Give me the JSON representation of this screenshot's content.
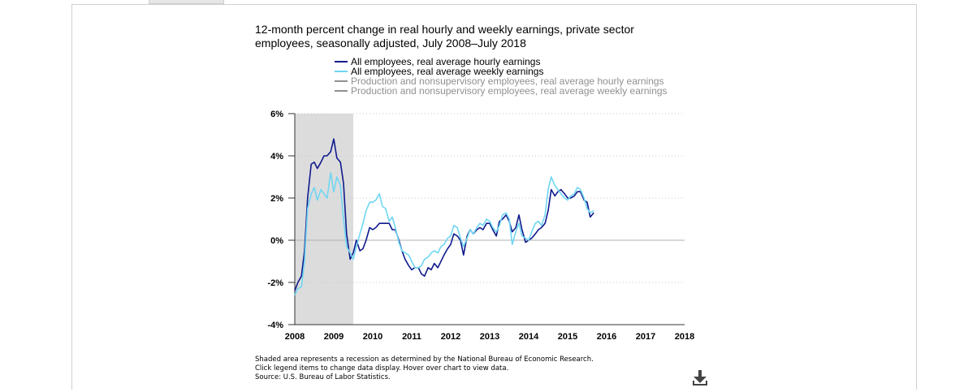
{
  "title": "12-month percent change in real hourly and weekly earnings, private sector employees, seasonally adjusted, July 2008–July 2018",
  "notes": [
    "Shaded area represents a recession as determined by the National Bureau of Economic Research.",
    "Click legend items to change data display. Hover over chart to view data.",
    "Source: U.S. Bureau of Labor Statistics."
  ],
  "icons": {
    "download": "download-icon"
  },
  "colors": {
    "hourly": "#0f1a8c",
    "weekly": "#6fd6f2",
    "inactive": "#909090",
    "recession": "#dcdcdc"
  },
  "chart_data": {
    "type": "line",
    "title": "12-month percent change in real hourly and weekly earnings, private sector employees, seasonally adjusted, July 2008–July 2018",
    "xlabel": "",
    "ylabel": "",
    "xlim": [
      2008,
      2018
    ],
    "ylim": [
      -4,
      6
    ],
    "x_ticks": [
      "2008",
      "2009",
      "2010",
      "2011",
      "2012",
      "2013",
      "2014",
      "2015",
      "2016",
      "2017",
      "2018"
    ],
    "y_ticks": [
      "6%",
      "4%",
      "2%",
      "0%",
      "-2%",
      "-4%"
    ],
    "y_tick_values": [
      6,
      4,
      2,
      0,
      -2,
      -4
    ],
    "grid": "horizontal-dotted",
    "legend_position": "top",
    "recession": {
      "start": 2008.0,
      "end": 2009.5
    },
    "series": [
      {
        "name": "All employees, real average hourly earnings",
        "color": "#0f1a8c",
        "active": true,
        "points": [
          [
            2008.0,
            -2.4
          ],
          [
            2008.08,
            -2.0
          ],
          [
            2008.17,
            -1.7
          ],
          [
            2008.25,
            -0.5
          ],
          [
            2008.33,
            2.0
          ],
          [
            2008.42,
            3.6
          ],
          [
            2008.5,
            3.7
          ],
          [
            2008.58,
            3.4
          ],
          [
            2008.67,
            3.7
          ],
          [
            2008.75,
            4.0
          ],
          [
            2008.83,
            4.0
          ],
          [
            2008.92,
            4.2
          ],
          [
            2009.0,
            4.8
          ],
          [
            2009.08,
            3.9
          ],
          [
            2009.17,
            3.7
          ],
          [
            2009.25,
            2.7
          ],
          [
            2009.33,
            0.3
          ],
          [
            2009.42,
            -0.9
          ],
          [
            2009.5,
            -0.6
          ],
          [
            2009.58,
            0.0
          ],
          [
            2009.67,
            -0.5
          ],
          [
            2009.75,
            -0.4
          ],
          [
            2009.83,
            0.0
          ],
          [
            2009.92,
            0.6
          ],
          [
            2010.0,
            0.5
          ],
          [
            2010.08,
            0.6
          ],
          [
            2010.17,
            0.8
          ],
          [
            2010.25,
            0.8
          ],
          [
            2010.33,
            0.8
          ],
          [
            2010.42,
            0.8
          ],
          [
            2010.5,
            0.5
          ],
          [
            2010.58,
            0.5
          ],
          [
            2010.67,
            0.0
          ],
          [
            2010.75,
            -0.5
          ],
          [
            2010.83,
            -0.9
          ],
          [
            2010.92,
            -1.2
          ],
          [
            2011.0,
            -1.4
          ],
          [
            2011.08,
            -1.3
          ],
          [
            2011.17,
            -1.3
          ],
          [
            2011.25,
            -1.6
          ],
          [
            2011.33,
            -1.7
          ],
          [
            2011.42,
            -1.3
          ],
          [
            2011.5,
            -1.4
          ],
          [
            2011.58,
            -1.1
          ],
          [
            2011.67,
            -1.3
          ],
          [
            2011.75,
            -1.0
          ],
          [
            2011.83,
            -0.7
          ],
          [
            2011.92,
            -0.4
          ],
          [
            2012.0,
            -0.2
          ],
          [
            2012.08,
            0.3
          ],
          [
            2012.17,
            0.2
          ],
          [
            2012.25,
            0.0
          ],
          [
            2012.33,
            -0.7
          ],
          [
            2012.42,
            0.2
          ],
          [
            2012.5,
            0.5
          ],
          [
            2012.58,
            0.3
          ],
          [
            2012.67,
            0.5
          ],
          [
            2012.75,
            0.6
          ],
          [
            2012.83,
            0.5
          ],
          [
            2012.92,
            0.8
          ],
          [
            2013.0,
            0.8
          ],
          [
            2013.08,
            0.5
          ],
          [
            2013.17,
            0.2
          ],
          [
            2013.25,
            0.9
          ],
          [
            2013.33,
            1.0
          ],
          [
            2013.42,
            1.2
          ],
          [
            2013.5,
            0.9
          ],
          [
            2013.58,
            0.4
          ],
          [
            2013.67,
            0.6
          ],
          [
            2013.75,
            1.2
          ],
          [
            2013.83,
            0.5
          ],
          [
            2013.92,
            -0.1
          ],
          [
            2014.0,
            0.0
          ],
          [
            2014.08,
            0.1
          ],
          [
            2014.17,
            0.3
          ],
          [
            2014.25,
            0.5
          ],
          [
            2014.33,
            0.6
          ],
          [
            2014.42,
            0.8
          ],
          [
            2014.5,
            1.4
          ],
          [
            2014.58,
            2.4
          ],
          [
            2014.67,
            2.1
          ],
          [
            2014.75,
            2.3
          ],
          [
            2014.83,
            2.4
          ],
          [
            2014.92,
            2.2
          ],
          [
            2015.0,
            2.0
          ],
          [
            2015.08,
            2.0
          ],
          [
            2015.17,
            2.1
          ],
          [
            2015.25,
            2.3
          ],
          [
            2015.33,
            2.3
          ],
          [
            2015.42,
            1.9
          ],
          [
            2015.5,
            1.8
          ],
          [
            2015.58,
            1.1
          ],
          [
            2015.67,
            1.3
          ]
        ]
      },
      {
        "name": "All employees, real average weekly earnings",
        "color": "#6fd6f2",
        "active": true,
        "points": [
          [
            2008.0,
            -2.6
          ],
          [
            2008.08,
            -2.3
          ],
          [
            2008.17,
            -2.2
          ],
          [
            2008.25,
            -1.0
          ],
          [
            2008.33,
            1.5
          ],
          [
            2008.42,
            2.2
          ],
          [
            2008.5,
            2.5
          ],
          [
            2008.58,
            1.9
          ],
          [
            2008.67,
            2.4
          ],
          [
            2008.75,
            2.2
          ],
          [
            2008.83,
            2.0
          ],
          [
            2008.92,
            3.2
          ],
          [
            2009.0,
            2.3
          ],
          [
            2009.08,
            3.0
          ],
          [
            2009.17,
            2.6
          ],
          [
            2009.25,
            1.0
          ],
          [
            2009.33,
            -0.3
          ],
          [
            2009.42,
            -0.6
          ],
          [
            2009.5,
            -0.9
          ],
          [
            2009.58,
            -0.3
          ],
          [
            2009.67,
            0.3
          ],
          [
            2009.75,
            0.8
          ],
          [
            2009.83,
            1.4
          ],
          [
            2009.92,
            1.8
          ],
          [
            2010.0,
            1.8
          ],
          [
            2010.08,
            1.9
          ],
          [
            2010.17,
            2.2
          ],
          [
            2010.25,
            1.6
          ],
          [
            2010.33,
            1.5
          ],
          [
            2010.42,
            0.9
          ],
          [
            2010.5,
            1.1
          ],
          [
            2010.58,
            0.6
          ],
          [
            2010.67,
            -0.1
          ],
          [
            2010.75,
            -0.5
          ],
          [
            2010.83,
            -0.6
          ],
          [
            2010.92,
            -0.7
          ],
          [
            2011.0,
            -1.0
          ],
          [
            2011.08,
            -1.3
          ],
          [
            2011.17,
            -1.3
          ],
          [
            2011.25,
            -1.2
          ],
          [
            2011.33,
            -0.9
          ],
          [
            2011.42,
            -0.8
          ],
          [
            2011.5,
            -0.6
          ],
          [
            2011.58,
            -0.5
          ],
          [
            2011.67,
            -0.6
          ],
          [
            2011.75,
            -0.3
          ],
          [
            2011.83,
            -0.2
          ],
          [
            2011.92,
            0.1
          ],
          [
            2012.0,
            0.2
          ],
          [
            2012.08,
            0.7
          ],
          [
            2012.17,
            0.6
          ],
          [
            2012.25,
            0.1
          ],
          [
            2012.33,
            -0.3
          ],
          [
            2012.42,
            0.1
          ],
          [
            2012.5,
            0.5
          ],
          [
            2012.58,
            0.3
          ],
          [
            2012.67,
            0.6
          ],
          [
            2012.75,
            0.8
          ],
          [
            2012.83,
            0.7
          ],
          [
            2012.92,
            1.0
          ],
          [
            2013.0,
            0.9
          ],
          [
            2013.08,
            0.6
          ],
          [
            2013.17,
            0.4
          ],
          [
            2013.25,
            0.7
          ],
          [
            2013.33,
            1.2
          ],
          [
            2013.42,
            1.3
          ],
          [
            2013.5,
            1.0
          ],
          [
            2013.58,
            -0.2
          ],
          [
            2013.67,
            0.4
          ],
          [
            2013.75,
            0.8
          ],
          [
            2013.83,
            0.2
          ],
          [
            2013.92,
            0.1
          ],
          [
            2014.0,
            0.0
          ],
          [
            2014.08,
            0.4
          ],
          [
            2014.17,
            0.8
          ],
          [
            2014.25,
            0.9
          ],
          [
            2014.33,
            0.7
          ],
          [
            2014.42,
            1.2
          ],
          [
            2014.5,
            2.4
          ],
          [
            2014.58,
            3.0
          ],
          [
            2014.67,
            2.6
          ],
          [
            2014.75,
            2.4
          ],
          [
            2014.83,
            2.2
          ],
          [
            2014.92,
            2.0
          ],
          [
            2015.0,
            1.9
          ],
          [
            2015.08,
            2.1
          ],
          [
            2015.17,
            2.2
          ],
          [
            2015.25,
            2.5
          ],
          [
            2015.33,
            2.4
          ],
          [
            2015.42,
            2.0
          ],
          [
            2015.5,
            1.5
          ],
          [
            2015.58,
            1.3
          ],
          [
            2015.67,
            1.4
          ]
        ]
      },
      {
        "name": "Production and nonsupervisory employees, real average hourly earnings",
        "color": "#909090",
        "active": false,
        "points": []
      },
      {
        "name": "Production and nonsupervisory employees, real average weekly earnings",
        "color": "#909090",
        "active": false,
        "points": []
      }
    ]
  }
}
